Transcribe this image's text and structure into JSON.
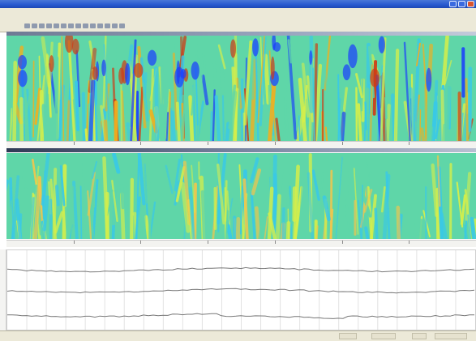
{
  "window": {
    "controls": [
      "minimize-icon",
      "maximize-icon",
      "close-icon"
    ],
    "accent_color": "#2a5bd0"
  },
  "menubar": {
    "item_count": 3
  },
  "toolbar": {
    "button_count": 14
  },
  "panels": [
    {
      "name": "upper-spectrogram",
      "colormap": [
        "#1a3cff",
        "#39c9e8",
        "#5fd6a8",
        "#d6ef4a",
        "#f0b020",
        "#d03a14"
      ],
      "intensity": "high"
    },
    {
      "name": "lower-spectrogram",
      "colormap": [
        "#39c9e8",
        "#5fd6a8",
        "#d6ef4a",
        "#f3c64c"
      ],
      "intensity": "low"
    }
  ],
  "traces": {
    "count": 3,
    "line_color": "#777777",
    "grid": true
  },
  "statusbar": {
    "cells": 4
  }
}
